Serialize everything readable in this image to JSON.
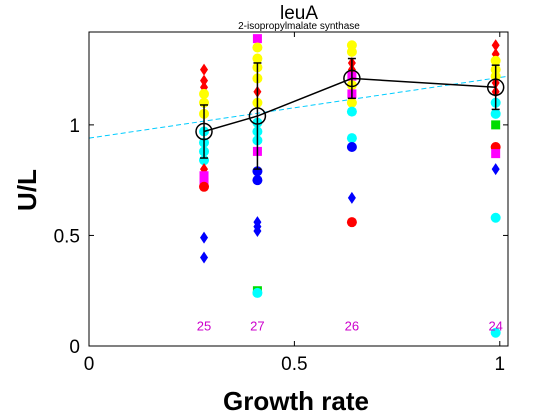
{
  "chart_data": {
    "type": "scatter",
    "title": "leuA",
    "subtitle": "2-isopropylmalate synthase",
    "xlabel": "Growth rate",
    "ylabel": "U/L",
    "xlim": [
      0,
      1.02
    ],
    "ylim": [
      0,
      1.42
    ],
    "xticks": [
      {
        "value": 0,
        "label": "0"
      },
      {
        "value": 0.5,
        "label": "0.5"
      },
      {
        "value": 1,
        "label": "1"
      }
    ],
    "yticks": [
      {
        "value": 0,
        "label": "0"
      },
      {
        "value": 0.5,
        "label": "0.5"
      },
      {
        "value": 1,
        "label": "1"
      }
    ],
    "grid": false,
    "points": [
      {
        "x": 0.28,
        "y": 1.25,
        "color": "#ff0000",
        "shape": "diamond"
      },
      {
        "x": 0.28,
        "y": 1.2,
        "color": "#ff0000",
        "shape": "diamond"
      },
      {
        "x": 0.28,
        "y": 1.17,
        "color": "#ff0000",
        "shape": "diamond"
      },
      {
        "x": 0.28,
        "y": 1.14,
        "color": "#ffff00",
        "shape": "circle"
      },
      {
        "x": 0.28,
        "y": 1.1,
        "color": "#ffff00",
        "shape": "circle"
      },
      {
        "x": 0.28,
        "y": 1.05,
        "color": "#ffff00",
        "shape": "circle"
      },
      {
        "x": 0.28,
        "y": 0.97,
        "color": "#00ffff",
        "shape": "circle"
      },
      {
        "x": 0.28,
        "y": 0.92,
        "color": "#00ffff",
        "shape": "circle"
      },
      {
        "x": 0.28,
        "y": 0.88,
        "color": "#00ffff",
        "shape": "circle"
      },
      {
        "x": 0.28,
        "y": 0.84,
        "color": "#00ffff",
        "shape": "circle"
      },
      {
        "x": 0.28,
        "y": 0.8,
        "color": "#ff0000",
        "shape": "diamond"
      },
      {
        "x": 0.28,
        "y": 0.77,
        "color": "#ff00ff",
        "shape": "square"
      },
      {
        "x": 0.28,
        "y": 0.74,
        "color": "#ff00ff",
        "shape": "square"
      },
      {
        "x": 0.28,
        "y": 0.72,
        "color": "#ff0000",
        "shape": "circle"
      },
      {
        "x": 0.28,
        "y": 0.49,
        "color": "#0000ff",
        "shape": "diamond"
      },
      {
        "x": 0.28,
        "y": 0.4,
        "color": "#0000ff",
        "shape": "diamond"
      },
      {
        "x": 0.41,
        "y": 1.39,
        "color": "#ff00ff",
        "shape": "square"
      },
      {
        "x": 0.41,
        "y": 1.35,
        "color": "#ffff00",
        "shape": "circle"
      },
      {
        "x": 0.41,
        "y": 1.3,
        "color": "#ffff00",
        "shape": "circle"
      },
      {
        "x": 0.41,
        "y": 1.26,
        "color": "#ffff00",
        "shape": "circle"
      },
      {
        "x": 0.41,
        "y": 1.21,
        "color": "#ffff00",
        "shape": "circle"
      },
      {
        "x": 0.41,
        "y": 1.15,
        "color": "#ff0000",
        "shape": "diamond"
      },
      {
        "x": 0.41,
        "y": 1.1,
        "color": "#ffff00",
        "shape": "circle"
      },
      {
        "x": 0.41,
        "y": 1.01,
        "color": "#00ffff",
        "shape": "circle"
      },
      {
        "x": 0.41,
        "y": 0.97,
        "color": "#00ffff",
        "shape": "circle"
      },
      {
        "x": 0.41,
        "y": 0.93,
        "color": "#00ffff",
        "shape": "circle"
      },
      {
        "x": 0.41,
        "y": 0.88,
        "color": "#ff00ff",
        "shape": "square"
      },
      {
        "x": 0.41,
        "y": 0.79,
        "color": "#0000ff",
        "shape": "circle"
      },
      {
        "x": 0.41,
        "y": 0.75,
        "color": "#0000ff",
        "shape": "circle"
      },
      {
        "x": 0.41,
        "y": 0.56,
        "color": "#0000ff",
        "shape": "diamond"
      },
      {
        "x": 0.41,
        "y": 0.54,
        "color": "#0000ff",
        "shape": "diamond"
      },
      {
        "x": 0.41,
        "y": 0.52,
        "color": "#0000ff",
        "shape": "diamond"
      },
      {
        "x": 0.41,
        "y": 0.25,
        "color": "#00dd00",
        "shape": "square"
      },
      {
        "x": 0.41,
        "y": 0.24,
        "color": "#00ffff",
        "shape": "circle"
      },
      {
        "x": 0.64,
        "y": 1.36,
        "color": "#ffff00",
        "shape": "circle"
      },
      {
        "x": 0.64,
        "y": 1.33,
        "color": "#ffff00",
        "shape": "circle"
      },
      {
        "x": 0.64,
        "y": 1.28,
        "color": "#ff0000",
        "shape": "diamond"
      },
      {
        "x": 0.64,
        "y": 1.25,
        "color": "#ff0000",
        "shape": "diamond"
      },
      {
        "x": 0.64,
        "y": 1.22,
        "color": "#ff00ff",
        "shape": "square"
      },
      {
        "x": 0.64,
        "y": 1.18,
        "color": "#ffff00",
        "shape": "circle"
      },
      {
        "x": 0.64,
        "y": 1.14,
        "color": "#ff00ff",
        "shape": "square"
      },
      {
        "x": 0.64,
        "y": 1.1,
        "color": "#ffff00",
        "shape": "circle"
      },
      {
        "x": 0.64,
        "y": 1.06,
        "color": "#00ffff",
        "shape": "circle"
      },
      {
        "x": 0.64,
        "y": 0.94,
        "color": "#00ffff",
        "shape": "circle"
      },
      {
        "x": 0.64,
        "y": 0.9,
        "color": "#0000ff",
        "shape": "circle"
      },
      {
        "x": 0.64,
        "y": 0.67,
        "color": "#0000ff",
        "shape": "diamond"
      },
      {
        "x": 0.64,
        "y": 0.56,
        "color": "#ff0000",
        "shape": "circle"
      },
      {
        "x": 0.99,
        "y": 1.36,
        "color": "#ff0000",
        "shape": "diamond"
      },
      {
        "x": 0.99,
        "y": 1.32,
        "color": "#ff0000",
        "shape": "diamond"
      },
      {
        "x": 0.99,
        "y": 1.29,
        "color": "#ffff00",
        "shape": "circle"
      },
      {
        "x": 0.99,
        "y": 1.25,
        "color": "#ffff00",
        "shape": "circle"
      },
      {
        "x": 0.99,
        "y": 1.22,
        "color": "#ffff00",
        "shape": "circle"
      },
      {
        "x": 0.99,
        "y": 1.19,
        "color": "#ff0000",
        "shape": "diamond"
      },
      {
        "x": 0.99,
        "y": 1.15,
        "color": "#ff0000",
        "shape": "diamond"
      },
      {
        "x": 0.99,
        "y": 1.1,
        "color": "#00ffff",
        "shape": "circle"
      },
      {
        "x": 0.99,
        "y": 1.05,
        "color": "#00ffff",
        "shape": "circle"
      },
      {
        "x": 0.99,
        "y": 1.0,
        "color": "#00dd00",
        "shape": "square"
      },
      {
        "x": 0.99,
        "y": 0.9,
        "color": "#ff0000",
        "shape": "circle"
      },
      {
        "x": 0.99,
        "y": 0.87,
        "color": "#ff00ff",
        "shape": "square"
      },
      {
        "x": 0.99,
        "y": 0.8,
        "color": "#0000ff",
        "shape": "diamond"
      },
      {
        "x": 0.99,
        "y": 0.58,
        "color": "#00ffff",
        "shape": "circle"
      },
      {
        "x": 0.99,
        "y": 0.06,
        "color": "#00ffff",
        "shape": "circle"
      }
    ],
    "mean_series": {
      "color": "#000000",
      "points": [
        {
          "x": 0.28,
          "y": 0.97,
          "err": 0.12
        },
        {
          "x": 0.41,
          "y": 1.04,
          "err": 0.24
        },
        {
          "x": 0.64,
          "y": 1.21,
          "err": 0.09
        },
        {
          "x": 0.99,
          "y": 1.17,
          "err": 0.1
        }
      ]
    },
    "fit_line": {
      "color": "#00ccff",
      "x": [
        0,
        1.02
      ],
      "y": [
        0.94,
        1.22
      ]
    },
    "counts": [
      {
        "x": 0.28,
        "label": "25"
      },
      {
        "x": 0.41,
        "label": "27"
      },
      {
        "x": 0.64,
        "label": "26"
      },
      {
        "x": 0.99,
        "label": "24"
      }
    ],
    "count_color": "#cc00cc"
  }
}
